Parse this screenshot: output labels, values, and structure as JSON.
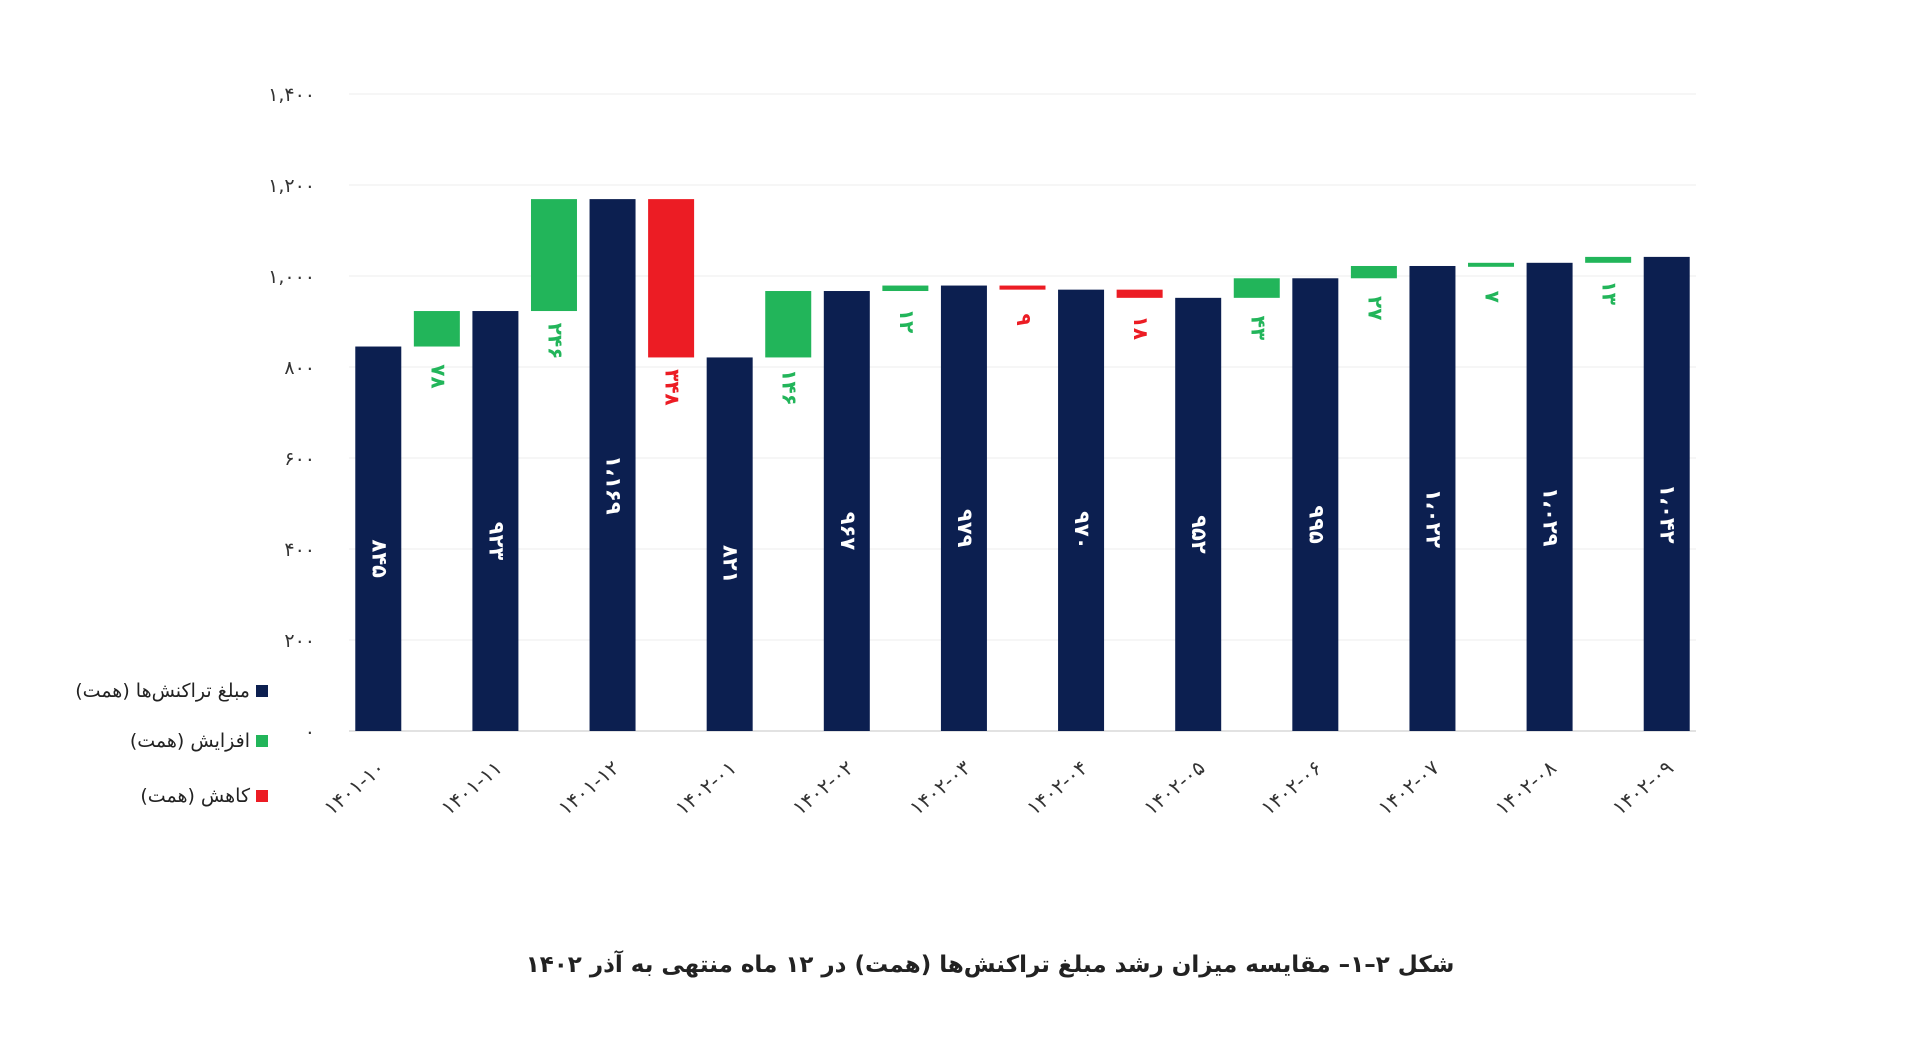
{
  "chart_data": {
    "type": "bar",
    "subtype": "waterfall",
    "title": "شکل ۲–۱– مقایسه میزان رشد مبلغ تراکنش‌ها (همت) در ۱۲ ماه منتهی به آذر ۱۴۰۲",
    "xlabel": "",
    "ylabel": "",
    "ylim": [
      0,
      1400
    ],
    "grid": true,
    "legend_placement": "left",
    "y_ticks": [
      0,
      200,
      400,
      600,
      800,
      1000,
      1200,
      1400
    ],
    "y_tick_labels": [
      "۰",
      "۲۰۰",
      "۴۰۰",
      "۶۰۰",
      "۸۰۰",
      "۱,۰۰۰",
      "۱,۲۰۰",
      "۱,۴۰۰"
    ],
    "categories": [
      "۱۴۰۱-۱۰",
      "۱۴۰۱-۱۱",
      "۱۴۰۱-۱۲",
      "۱۴۰۲-۰۱",
      "۱۴۰۲-۰۲",
      "۱۴۰۲-۰۳",
      "۱۴۰۲-۰۴",
      "۱۴۰۲-۰۵",
      "۱۴۰۲-۰۶",
      "۱۴۰۲-۰۷",
      "۱۴۰۲-۰۸",
      "۱۴۰۲-۰۹"
    ],
    "totals": [
      845,
      923,
      1169,
      821,
      967,
      979,
      970,
      952,
      995,
      1022,
      1029,
      1042
    ],
    "total_labels": [
      "۸۴۵",
      "۹۲۳",
      "۱،۱۶۹",
      "۸۲۱",
      "۹۶۷",
      "۹۷۹",
      "۹۷۰",
      "۹۵۲",
      "۹۹۵",
      "۱،۰۲۲",
      "۱،۰۲۹",
      "۱،۰۴۲"
    ],
    "deltas": [
      78,
      246,
      -348,
      146,
      12,
      -9,
      -18,
      43,
      27,
      7,
      13
    ],
    "delta_labels": [
      "۷۸",
      "۲۴۶",
      "۳۴۸",
      "۱۴۶",
      "۱۲",
      "۹",
      "۱۸",
      "۴۳",
      "۲۷",
      "۷",
      "۱۳"
    ],
    "series": [
      {
        "name": "مبلغ تراکنش‌ها (همت)",
        "color": "#0c1f50"
      },
      {
        "name": "افزایش (همت)",
        "color": "#22b55a"
      },
      {
        "name": "کاهش (همت)",
        "color": "#ec1c24"
      }
    ]
  }
}
